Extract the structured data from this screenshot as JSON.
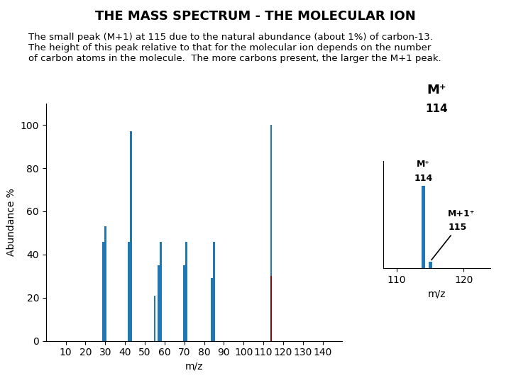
{
  "chart_data": [
    {
      "type": "bar",
      "title": "THE MASS SPECTRUM - THE MOLECULAR ION",
      "subtitle": "The small peak (M+1) at 115 due to the natural abundance (about 1%) of carbon-13.\nThe height of this peak relative to that for the molecular ion depends on the number\nof carbon atoms in the molecule.  The more carbons present, the larger the M+1 peak.",
      "xlabel": "m/z",
      "ylabel": "Abundance %",
      "xlim": [
        0,
        150
      ],
      "ylim": [
        0,
        110
      ],
      "xticks": [
        10,
        20,
        30,
        40,
        50,
        60,
        70,
        80,
        90,
        100,
        110,
        120,
        130,
        140
      ],
      "yticks": [
        0,
        20,
        40,
        60,
        80,
        100
      ],
      "series": [
        {
          "x": [
            29,
            30,
            42,
            55,
            57,
            58,
            70,
            71,
            84,
            85,
            43,
            114
          ],
          "values": [
            46,
            53,
            46,
            21,
            35,
            46,
            35,
            46,
            29,
            46,
            97,
            100
          ],
          "color": "#1f77b4"
        },
        {
          "x": [
            114
          ],
          "values": [
            30
          ],
          "color": "#990000"
        }
      ],
      "annotations": [
        "M⁺",
        "114"
      ]
    },
    {
      "type": "bar",
      "xlabel": "m/z",
      "x": [
        114,
        115
      ],
      "values": [
        100,
        8
      ],
      "color": "#1f77b4",
      "xlim": [
        108,
        124
      ],
      "ylim": [
        0,
        130
      ],
      "xticks": [
        110,
        120
      ],
      "tick_labels": "x",
      "annotations": [
        {
          "text": "M⁺",
          "x": 114
        },
        {
          "text": "114",
          "x": 114
        },
        {
          "text": "M+1⁺",
          "x": 115
        },
        {
          "text": "115",
          "x": 115
        }
      ]
    }
  ]
}
